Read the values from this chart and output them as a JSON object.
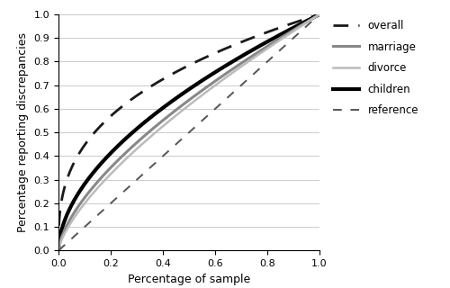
{
  "title": "",
  "xlabel": "Percentage of sample",
  "ylabel": "Percentage reporting discrepancies",
  "xlim": [
    0,
    1
  ],
  "ylim": [
    0,
    1
  ],
  "xticks": [
    0,
    0.2,
    0.4,
    0.6,
    0.8,
    1.0
  ],
  "yticks": [
    0,
    0.1,
    0.2,
    0.3,
    0.4,
    0.5,
    0.6,
    0.7,
    0.8,
    0.9,
    1.0
  ],
  "curves": {
    "overall": {
      "color": "#1a1a1a",
      "linewidth": 2.0,
      "power": 0.35,
      "dash_on": 6,
      "dash_off": 4
    },
    "marriage": {
      "color": "#888888",
      "linewidth": 2.2,
      "power": 0.65,
      "dash_on": 0,
      "dash_off": 0
    },
    "divorce": {
      "color": "#bbbbbb",
      "linewidth": 1.8,
      "power": 0.7,
      "dash_on": 0,
      "dash_off": 0
    },
    "children": {
      "color": "#000000",
      "linewidth": 3.0,
      "power": 0.55,
      "dash_on": 0,
      "dash_off": 0
    },
    "reference": {
      "color": "#555555",
      "linewidth": 1.4,
      "power": 1.0,
      "dash_on": 5,
      "dash_off": 5
    }
  },
  "legend_fontsize": 8.5,
  "axis_fontsize": 9,
  "tick_fontsize": 8,
  "grid_color": "#cccccc",
  "grid_linewidth": 0.7
}
